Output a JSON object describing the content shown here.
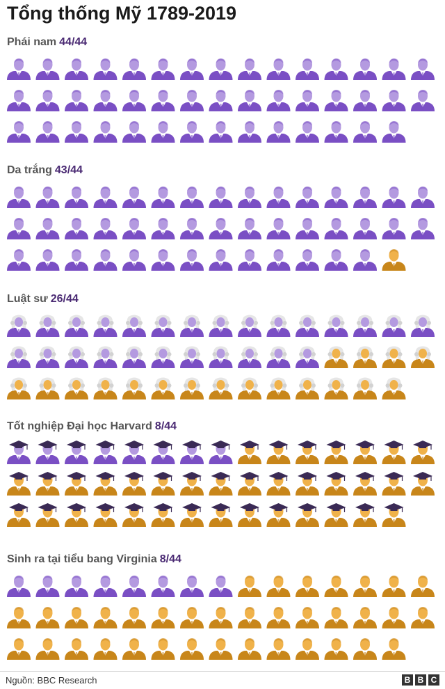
{
  "title": "Tổng thống Mỹ 1789-2019",
  "colors": {
    "yes": "#7a4fc4",
    "yes_skin": "#b49ae0",
    "no": "#c8861a",
    "no_skin": "#f0b24a"
  },
  "chart_data": {
    "type": "pictogram",
    "total": 44,
    "panels": [
      {
        "label": "Phái nam",
        "count_label": "44/44",
        "value": 44,
        "icon": "president-icon"
      },
      {
        "label": "Da trắng",
        "count_label": "43/44",
        "value": 43,
        "icon": "president-icon"
      },
      {
        "label": "Luật sư",
        "count_label": "26/44",
        "value": 26,
        "icon": "lawyer-wig-icon"
      },
      {
        "label": "Tốt nghiệp Đại học Harvard",
        "count_label": "8/44",
        "value": 8,
        "icon": "graduate-cap-icon"
      },
      {
        "label": "Sinh ra tại tiểu bang Virginia",
        "count_label": "8/44",
        "value": 8,
        "icon": "president-icon"
      }
    ]
  },
  "footer": {
    "source": "Nguồn: BBC Research",
    "logo": [
      "B",
      "B",
      "C"
    ]
  }
}
